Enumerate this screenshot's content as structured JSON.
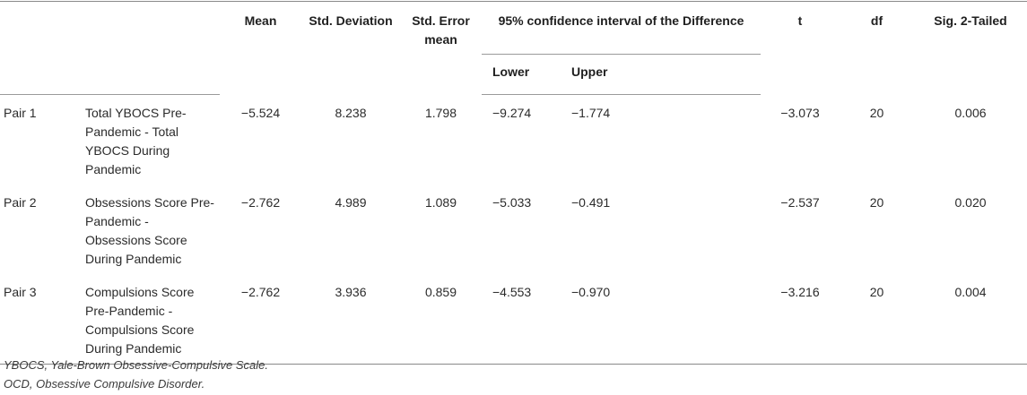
{
  "headers": {
    "mean": "Mean",
    "std_deviation": "Std. Deviation",
    "std_error_mean": "Std. Error mean",
    "ci": "95% confidence interval of the Difference",
    "t": "t",
    "df": "df",
    "sig": "Sig. 2-Tailed",
    "lower": "Lower",
    "upper": "Upper"
  },
  "rows": [
    {
      "pair": "Pair 1",
      "variable": "Total YBOCS Pre-Pandemic - Total YBOCS During Pandemic",
      "mean": "−5.524",
      "std_deviation": "8.238",
      "std_error_mean": "1.798",
      "lower": "−9.274",
      "upper": "−1.774",
      "t": "−3.073",
      "df": "20",
      "sig": "0.006"
    },
    {
      "pair": "Pair 2",
      "variable": "Obsessions Score Pre-Pandemic - Obsessions Score During Pandemic",
      "mean": "−2.762",
      "std_deviation": "4.989",
      "std_error_mean": "1.089",
      "lower": "−5.033",
      "upper": "−0.491",
      "t": "−2.537",
      "df": "20",
      "sig": "0.020"
    },
    {
      "pair": "Pair 3",
      "variable": "Compulsions Score Pre-Pandemic - Compulsions Score During Pandemic",
      "mean": "−2.762",
      "std_deviation": "3.936",
      "std_error_mean": "0.859",
      "lower": "−4.553",
      "upper": "−0.970",
      "t": "−3.216",
      "df": "20",
      "sig": "0.004"
    }
  ],
  "footnotes": [
    "YBOCS, Yale-Brown Obsessive-Compulsive Scale.",
    "OCD, Obsessive Compulsive Disorder."
  ]
}
